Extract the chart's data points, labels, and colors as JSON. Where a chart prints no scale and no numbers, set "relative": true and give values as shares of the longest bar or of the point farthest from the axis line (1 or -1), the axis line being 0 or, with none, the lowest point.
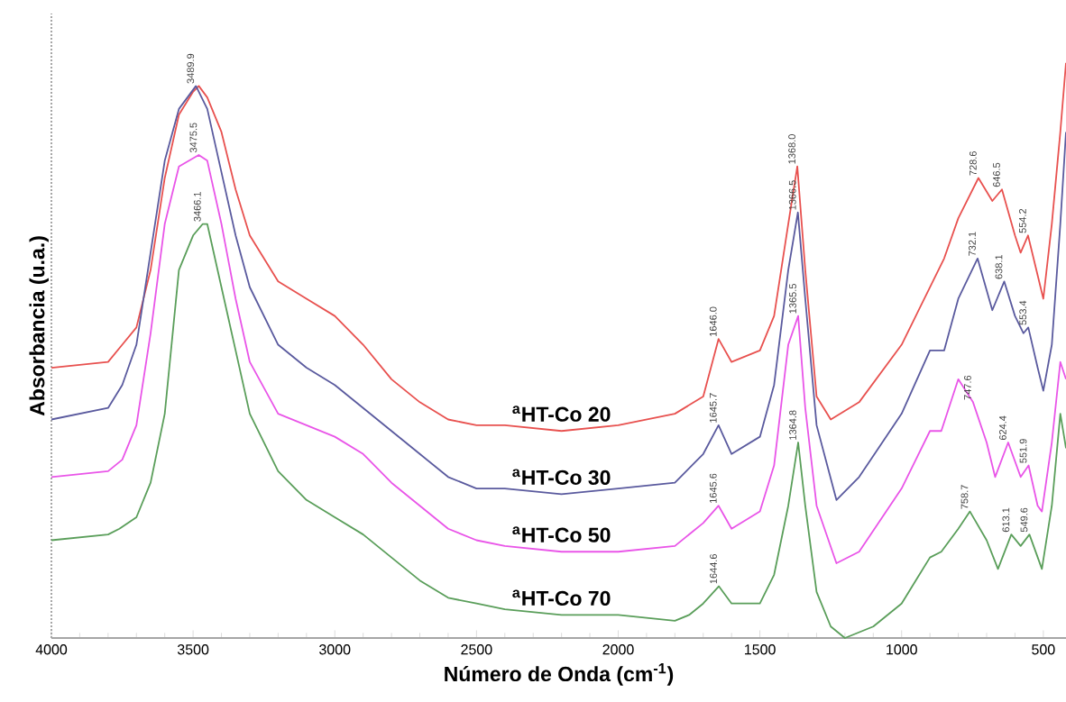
{
  "chart_data": {
    "type": "line",
    "relative": true,
    "xlabel": "Número de Onda (cm$^{-1}$)",
    "ylabel": "Absorbancia (u.a.)",
    "xlim": [
      4000,
      420
    ],
    "xticks": [
      4000,
      3500,
      3000,
      2500,
      2000,
      1500,
      1000,
      500
    ],
    "tick_labels": "x",
    "series": [
      {
        "name": "$^{a}$HT-Co 20",
        "color": "#e8514f",
        "x": [
          4000,
          3800,
          3750,
          3700,
          3650,
          3600,
          3550,
          3500,
          3480,
          3450,
          3400,
          3350,
          3300,
          3200,
          3100,
          3000,
          2900,
          2800,
          2700,
          2600,
          2500,
          2400,
          2200,
          2000,
          1800,
          1700,
          1646,
          1600,
          1500,
          1450,
          1400,
          1368,
          1340,
          1300,
          1250,
          1150,
          1000,
          850,
          800,
          729,
          680,
          646,
          600,
          580,
          554,
          500,
          470,
          440,
          420
        ],
        "values": [
          0.47,
          0.48,
          0.51,
          0.54,
          0.64,
          0.8,
          0.91,
          0.95,
          0.96,
          0.94,
          0.88,
          0.78,
          0.7,
          0.62,
          0.59,
          0.56,
          0.51,
          0.45,
          0.41,
          0.38,
          0.37,
          0.37,
          0.36,
          0.37,
          0.39,
          0.42,
          0.52,
          0.48,
          0.5,
          0.56,
          0.72,
          0.82,
          0.64,
          0.42,
          0.38,
          0.41,
          0.51,
          0.66,
          0.73,
          0.8,
          0.76,
          0.78,
          0.7,
          0.67,
          0.7,
          0.59,
          0.72,
          0.88,
          1.0
        ]
      },
      {
        "name": "$^{a}$HT-Co 30",
        "color": "#5a5a9e",
        "x": [
          4000,
          3800,
          3750,
          3700,
          3650,
          3600,
          3550,
          3490,
          3450,
          3400,
          3350,
          3300,
          3200,
          3100,
          3000,
          2900,
          2800,
          2700,
          2600,
          2500,
          2400,
          2200,
          2000,
          1800,
          1700,
          1646,
          1600,
          1500,
          1450,
          1400,
          1366,
          1340,
          1300,
          1230,
          1150,
          1000,
          900,
          850,
          800,
          732,
          680,
          638,
          600,
          570,
          553,
          520,
          500,
          470,
          440,
          420
        ],
        "values": [
          0.38,
          0.4,
          0.44,
          0.51,
          0.67,
          0.83,
          0.92,
          0.96,
          0.92,
          0.81,
          0.7,
          0.61,
          0.51,
          0.47,
          0.44,
          0.4,
          0.36,
          0.32,
          0.28,
          0.26,
          0.26,
          0.25,
          0.26,
          0.27,
          0.32,
          0.37,
          0.32,
          0.35,
          0.44,
          0.64,
          0.74,
          0.59,
          0.37,
          0.24,
          0.28,
          0.39,
          0.5,
          0.5,
          0.59,
          0.66,
          0.57,
          0.62,
          0.56,
          0.53,
          0.54,
          0.47,
          0.43,
          0.51,
          0.72,
          0.88
        ]
      },
      {
        "name": "$^{a}$HT-Co 50",
        "color": "#e955e8",
        "x": [
          4000,
          3800,
          3750,
          3700,
          3650,
          3600,
          3550,
          3480,
          3450,
          3400,
          3350,
          3300,
          3200,
          3100,
          3000,
          2900,
          2800,
          2700,
          2600,
          2500,
          2400,
          2200,
          2000,
          1800,
          1700,
          1646,
          1600,
          1500,
          1450,
          1400,
          1365,
          1340,
          1300,
          1230,
          1150,
          1000,
          900,
          860,
          800,
          748,
          700,
          670,
          624,
          580,
          552,
          520,
          505,
          470,
          440,
          420
        ],
        "values": [
          0.28,
          0.29,
          0.31,
          0.37,
          0.53,
          0.72,
          0.82,
          0.84,
          0.83,
          0.72,
          0.59,
          0.48,
          0.39,
          0.37,
          0.35,
          0.32,
          0.27,
          0.23,
          0.19,
          0.17,
          0.16,
          0.15,
          0.15,
          0.16,
          0.2,
          0.23,
          0.19,
          0.22,
          0.3,
          0.51,
          0.56,
          0.4,
          0.23,
          0.13,
          0.15,
          0.26,
          0.36,
          0.36,
          0.45,
          0.41,
          0.34,
          0.28,
          0.34,
          0.28,
          0.3,
          0.23,
          0.22,
          0.34,
          0.48,
          0.45
        ]
      },
      {
        "name": "$^{a}$HT-Co 70",
        "color": "#5a9e5a",
        "x": [
          4000,
          3800,
          3760,
          3700,
          3650,
          3600,
          3550,
          3500,
          3466,
          3450,
          3400,
          3350,
          3300,
          3200,
          3100,
          3000,
          2900,
          2800,
          2700,
          2600,
          2500,
          2400,
          2200,
          2000,
          1800,
          1750,
          1700,
          1645,
          1600,
          1500,
          1450,
          1400,
          1365,
          1340,
          1300,
          1250,
          1200,
          1100,
          1000,
          900,
          860,
          800,
          759,
          700,
          660,
          613,
          580,
          549,
          505,
          470,
          440,
          420
        ],
        "values": [
          0.17,
          0.18,
          0.19,
          0.21,
          0.27,
          0.39,
          0.64,
          0.7,
          0.72,
          0.72,
          0.61,
          0.5,
          0.39,
          0.29,
          0.24,
          0.21,
          0.18,
          0.14,
          0.1,
          0.07,
          0.06,
          0.05,
          0.04,
          0.04,
          0.03,
          0.04,
          0.06,
          0.09,
          0.06,
          0.06,
          0.11,
          0.23,
          0.34,
          0.23,
          0.08,
          0.02,
          0.0,
          0.02,
          0.06,
          0.14,
          0.15,
          0.19,
          0.22,
          0.17,
          0.12,
          0.18,
          0.16,
          0.18,
          0.12,
          0.23,
          0.39,
          0.33
        ]
      }
    ],
    "annotations": [
      {
        "text": "3489.9",
        "x": 3490,
        "y": 0.96
      },
      {
        "text": "3475.5",
        "x": 3480,
        "y": 0.84
      },
      {
        "text": "3466.1",
        "x": 3466,
        "y": 0.72
      },
      {
        "text": "1646.0",
        "x": 1646,
        "y": 0.52
      },
      {
        "text": "1368.0",
        "x": 1368,
        "y": 0.82
      },
      {
        "text": "728.6",
        "x": 729,
        "y": 0.8
      },
      {
        "text": "646.5",
        "x": 646,
        "y": 0.78
      },
      {
        "text": "554.2",
        "x": 554,
        "y": 0.7
      },
      {
        "text": "1645.7",
        "x": 1646,
        "y": 0.37
      },
      {
        "text": "1366.5",
        "x": 1366,
        "y": 0.74
      },
      {
        "text": "732.1",
        "x": 732,
        "y": 0.66
      },
      {
        "text": "638.1",
        "x": 638,
        "y": 0.62
      },
      {
        "text": "553.4",
        "x": 553,
        "y": 0.54
      },
      {
        "text": "1645.6",
        "x": 1646,
        "y": 0.23
      },
      {
        "text": "1365.5",
        "x": 1365,
        "y": 0.56
      },
      {
        "text": "747.6",
        "x": 748,
        "y": 0.41
      },
      {
        "text": "624.4",
        "x": 624,
        "y": 0.34
      },
      {
        "text": "551.9",
        "x": 552,
        "y": 0.3
      },
      {
        "text": "1644.6",
        "x": 1645,
        "y": 0.09
      },
      {
        "text": "1364.8",
        "x": 1365,
        "y": 0.34
      },
      {
        "text": "758.7",
        "x": 759,
        "y": 0.22
      },
      {
        "text": "613.1",
        "x": 613,
        "y": 0.18
      },
      {
        "text": "549.6",
        "x": 549,
        "y": 0.18
      }
    ]
  }
}
